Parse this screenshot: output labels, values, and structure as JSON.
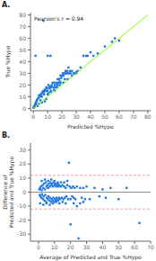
{
  "chart_data": [
    {
      "type": "scatter",
      "panel_label": "A.",
      "annotation": "Pearson's r = 0.94",
      "xlabel": "Predicted %Hypo",
      "ylabel": "True %Hypo",
      "xlim": [
        -2,
        82
      ],
      "ylim": [
        -2,
        82
      ],
      "xticks": [
        0,
        10,
        20,
        30,
        40,
        50,
        60,
        70,
        80
      ],
      "yticks": [
        0,
        10,
        20,
        30,
        40,
        50,
        60,
        70,
        80
      ],
      "grid": false,
      "series": [
        {
          "type": "scatter",
          "color": "#2277dd",
          "marker": "square",
          "points": [
            [
              0.2,
              0.5
            ],
            [
              0.3,
              0.8
            ],
            [
              0.5,
              1.2
            ],
            [
              0.8,
              1.5
            ],
            [
              1.0,
              2.5
            ],
            [
              1.2,
              3.0
            ],
            [
              1.5,
              4.0
            ],
            [
              1.8,
              5.0
            ],
            [
              2.0,
              3.5
            ],
            [
              2.2,
              6.0
            ],
            [
              2.5,
              7.0
            ],
            [
              3.0,
              8.0
            ],
            [
              3.5,
              9.0
            ],
            [
              4.0,
              11.0
            ],
            [
              4.5,
              10.0
            ],
            [
              5.0,
              12.0
            ],
            [
              5.5,
              11.0
            ],
            [
              6.0,
              13.0
            ],
            [
              6.5,
              14.0
            ],
            [
              7.0,
              15.0
            ],
            [
              7.5,
              14.0
            ],
            [
              8.0,
              16.0
            ],
            [
              8.5,
              15.0
            ],
            [
              9.0,
              18.0
            ],
            [
              9.5,
              17.0
            ],
            [
              10.0,
              15.0
            ],
            [
              10.5,
              20.0
            ],
            [
              11.0,
              18.0
            ],
            [
              11.5,
              17.0
            ],
            [
              12.0,
              19.0
            ],
            [
              12.5,
              18.0
            ],
            [
              13.0,
              20.0
            ],
            [
              13.5,
              22.0
            ],
            [
              14.0,
              18.0
            ],
            [
              14.5,
              22.0
            ],
            [
              15.0,
              20.0
            ],
            [
              15.5,
              18.0
            ],
            [
              16.0,
              22.0
            ],
            [
              16.5,
              20.0
            ],
            [
              17.0,
              25.0
            ],
            [
              17.5,
              22.0
            ],
            [
              18.0,
              25.0
            ],
            [
              18.5,
              23.0
            ],
            [
              19.0,
              28.0
            ],
            [
              19.5,
              26.0
            ],
            [
              20.0,
              28.0
            ],
            [
              20.5,
              30.0
            ],
            [
              21.0,
              28.0
            ],
            [
              21.5,
              30.0
            ],
            [
              22.0,
              30.0
            ],
            [
              22.5,
              32.0
            ],
            [
              23.0,
              30.0
            ],
            [
              23.5,
              32.0
            ],
            [
              24.0,
              30.0
            ],
            [
              24.5,
              35.0
            ],
            [
              25.0,
              30.0
            ],
            [
              25.5,
              32.0
            ],
            [
              26.0,
              30.0
            ],
            [
              27.0,
              32.0
            ],
            [
              28.0,
              30.0
            ],
            [
              29.0,
              30.0
            ],
            [
              30.0,
              30.0
            ],
            [
              31.0,
              32.0
            ],
            [
              33.0,
              35.0
            ],
            [
              35.0,
              45.0
            ],
            [
              37.0,
              45.0
            ],
            [
              38.0,
              45.0
            ],
            [
              40.0,
              48.0
            ],
            [
              42.0,
              45.0
            ],
            [
              45.0,
              47.0
            ],
            [
              50.0,
              53.0
            ],
            [
              55.0,
              57.0
            ],
            [
              57.0,
              60.0
            ],
            [
              60.0,
              58.0
            ],
            [
              1.5,
              45.0
            ],
            [
              12.0,
              45.0
            ],
            [
              10.0,
              45.0
            ],
            [
              7.0,
              75.0
            ],
            [
              3.0,
              2.0
            ],
            [
              4.0,
              4.0
            ],
            [
              5.0,
              7.0
            ],
            [
              6.0,
              10.0
            ],
            [
              7.5,
              12.0
            ],
            [
              9.0,
              8.0
            ],
            [
              10.5,
              13.0
            ],
            [
              12.5,
              15.0
            ],
            [
              14.5,
              16.0
            ],
            [
              16.5,
              18.0
            ],
            [
              18.5,
              20.0
            ],
            [
              21.0,
              22.0
            ],
            [
              24.0,
              25.0
            ],
            [
              27.0,
              28.0
            ],
            [
              30.0,
              31.0
            ],
            [
              6.0,
              5.0
            ],
            [
              8.0,
              6.0
            ],
            [
              10.0,
              12.0
            ],
            [
              12.0,
              14.0
            ],
            [
              15.0,
              15.0
            ],
            [
              17.0,
              20.0
            ],
            [
              19.0,
              22.0
            ],
            [
              22.0,
              25.0
            ]
          ]
        },
        {
          "type": "line",
          "color": "#7fff00",
          "line_style": "solid",
          "points": [
            [
              0,
              0
            ],
            [
              80,
              80
            ]
          ]
        }
      ]
    },
    {
      "type": "scatter",
      "panel_label": "B.",
      "xlabel": "Average of Predicted and True %Hypo",
      "ylabel": "Difference of\nPredicted and True %Hypo",
      "xlim": [
        -5,
        70
      ],
      "ylim": [
        -35,
        35
      ],
      "xticks": [
        0,
        10,
        20,
        30,
        40,
        50,
        60,
        70
      ],
      "yticks": [
        -30,
        -20,
        -10,
        0,
        10,
        20,
        30
      ],
      "grid": false,
      "reference_lines": [
        {
          "y": 0,
          "color": "#909090",
          "line_style": "solid"
        },
        {
          "y": 12,
          "color": "#ff9999",
          "line_style": "dashed"
        },
        {
          "y": -12,
          "color": "#ff9999",
          "line_style": "dashed"
        }
      ],
      "series": [
        {
          "type": "scatter",
          "color": "#2277dd",
          "marker": "square",
          "points": [
            [
              0.5,
              2.0
            ],
            [
              0.8,
              -2.0
            ],
            [
              1.0,
              3.0
            ],
            [
              1.2,
              -3.0
            ],
            [
              1.5,
              4.0
            ],
            [
              1.8,
              -4.0
            ],
            [
              2.0,
              1.5
            ],
            [
              2.2,
              -1.5
            ],
            [
              2.5,
              5.0
            ],
            [
              2.8,
              -5.0
            ],
            [
              3.0,
              3.0
            ],
            [
              3.2,
              -3.0
            ],
            [
              3.5,
              6.0
            ],
            [
              3.8,
              -6.0
            ],
            [
              4.0,
              2.0
            ],
            [
              4.2,
              -2.0
            ],
            [
              4.5,
              7.0
            ],
            [
              4.8,
              -7.0
            ],
            [
              5.0,
              4.0
            ],
            [
              5.2,
              -4.0
            ],
            [
              5.5,
              5.0
            ],
            [
              5.8,
              -5.0
            ],
            [
              6.0,
              3.0
            ],
            [
              6.2,
              -3.0
            ],
            [
              6.5,
              6.0
            ],
            [
              6.8,
              -6.0
            ],
            [
              7.0,
              4.0
            ],
            [
              7.2,
              -4.0
            ],
            [
              7.5,
              7.0
            ],
            [
              7.8,
              -7.0
            ],
            [
              8.0,
              5.0
            ],
            [
              8.2,
              -5.0
            ],
            [
              8.5,
              6.0
            ],
            [
              8.8,
              -6.0
            ],
            [
              9.0,
              4.0
            ],
            [
              9.2,
              -4.0
            ],
            [
              9.5,
              7.0
            ],
            [
              9.8,
              -7.0
            ],
            [
              10.0,
              5.0
            ],
            [
              10.2,
              -5.0
            ],
            [
              10.5,
              6.0
            ],
            [
              10.8,
              -6.0
            ],
            [
              11.0,
              4.0
            ],
            [
              11.2,
              -4.0
            ],
            [
              11.5,
              5.0
            ],
            [
              11.8,
              -5.0
            ],
            [
              12.0,
              6.0
            ],
            [
              12.2,
              -6.0
            ],
            [
              12.5,
              4.0
            ],
            [
              12.8,
              -4.0
            ],
            [
              13.0,
              5.0
            ],
            [
              13.5,
              -5.0
            ],
            [
              14.0,
              4.0
            ],
            [
              14.5,
              -4.0
            ],
            [
              15.0,
              5.0
            ],
            [
              15.5,
              -5.0
            ],
            [
              16.0,
              4.0
            ],
            [
              16.5,
              -4.0
            ],
            [
              17.0,
              3.0
            ],
            [
              17.5,
              -3.0
            ],
            [
              18.0,
              5.0
            ],
            [
              18.5,
              -5.0
            ],
            [
              19.0,
              21.0
            ],
            [
              19.5,
              4.0
            ],
            [
              20.0,
              -5.0
            ],
            [
              20.5,
              3.0
            ],
            [
              21.0,
              -3.0
            ],
            [
              21.5,
              4.0
            ],
            [
              22.0,
              -4.0
            ],
            [
              22.5,
              3.0
            ],
            [
              23.0,
              -5.0
            ],
            [
              24.0,
              4.0
            ],
            [
              25.0,
              -33.0
            ],
            [
              26.0,
              3.0
            ],
            [
              27.0,
              -4.0
            ],
            [
              28.0,
              3.0
            ],
            [
              29.0,
              -5.0
            ],
            [
              30.0,
              4.0
            ],
            [
              32.0,
              -5.0
            ],
            [
              35.0,
              3.0
            ],
            [
              38.0,
              -3.0
            ],
            [
              40.0,
              2.0
            ],
            [
              42.0,
              -4.0
            ],
            [
              45.0,
              3.0
            ],
            [
              50.0,
              -5.0
            ],
            [
              55.0,
              3.0
            ],
            [
              63.0,
              -22.0
            ],
            [
              1.0,
              -8.0
            ],
            [
              2.0,
              8.0
            ],
            [
              3.0,
              -9.0
            ],
            [
              4.0,
              9.0
            ],
            [
              5.0,
              -8.0
            ],
            [
              6.0,
              8.0
            ],
            [
              7.0,
              -9.0
            ],
            [
              8.0,
              9.0
            ],
            [
              9.0,
              -8.0
            ],
            [
              10.0,
              8.0
            ],
            [
              11.0,
              -7.0
            ],
            [
              12.0,
              7.0
            ],
            [
              13.0,
              -8.0
            ],
            [
              14.0,
              7.0
            ],
            [
              15.0,
              -7.0
            ],
            [
              16.0,
              7.0
            ],
            [
              17.0,
              -8.0
            ],
            [
              18.0,
              8.0
            ],
            [
              20.0,
              -23.0
            ],
            [
              22.0,
              -8.0
            ],
            [
              24.0,
              -10.0
            ],
            [
              26.0,
              -8.0
            ],
            [
              28.0,
              -7.0
            ]
          ]
        }
      ]
    }
  ]
}
